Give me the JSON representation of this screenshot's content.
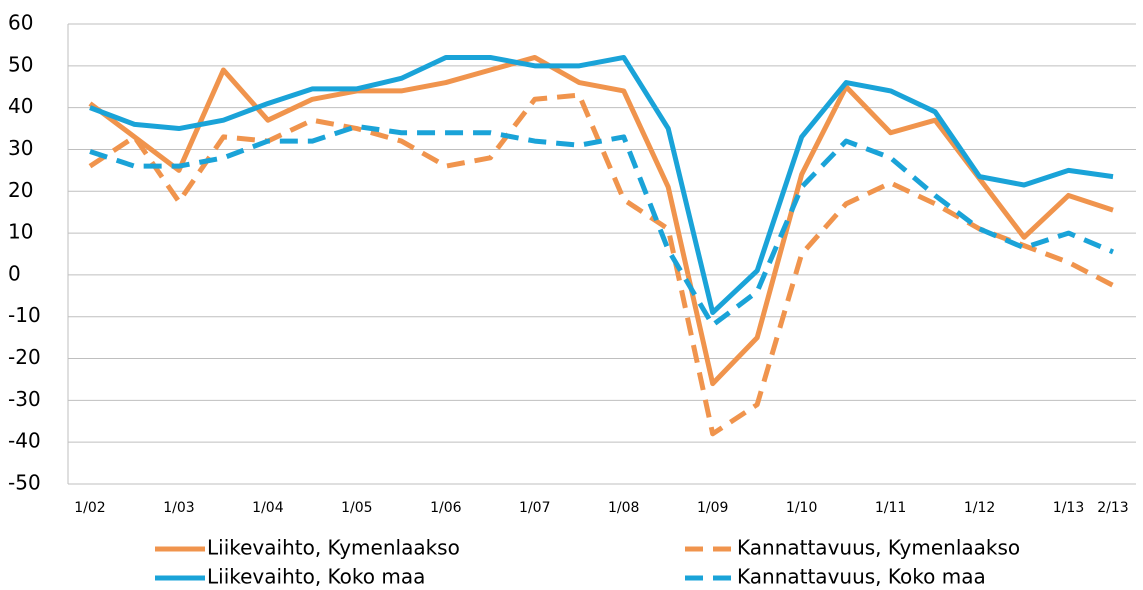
{
  "chart_data": {
    "type": "line",
    "categories": [
      "1/02",
      null,
      "1/03",
      null,
      "1/04",
      null,
      "1/05",
      null,
      "1/06",
      null,
      "1/07",
      null,
      "1/08",
      null,
      "1/09",
      null,
      "1/10",
      null,
      "1/11",
      null,
      "1/12",
      null,
      "1/13",
      "2/13"
    ],
    "series": [
      {
        "name": "Liikevaihto, Kymenlaakso",
        "color": "#f0944d",
        "dashed": false,
        "values": [
          41,
          33,
          25,
          49,
          37,
          42,
          44,
          44,
          46,
          49,
          52,
          46,
          44,
          21,
          -26,
          -15,
          24,
          45,
          34,
          37,
          23,
          9,
          19,
          15.5
        ]
      },
      {
        "name": "Kannattavuus, Kymenlaakso",
        "color": "#f0944d",
        "dashed": true,
        "values": [
          26,
          33,
          17.5,
          33,
          32,
          37,
          35,
          32,
          26,
          28,
          42,
          43,
          18,
          11,
          -38,
          -31,
          5,
          17,
          22,
          17,
          11,
          7,
          3,
          -2.5
        ]
      },
      {
        "name": "Liikevaihto, Koko maa",
        "color": "#1aa3d8",
        "dashed": false,
        "values": [
          40,
          36,
          35,
          37,
          41,
          44.5,
          44.5,
          47,
          52,
          52,
          50,
          50,
          52,
          35,
          -9,
          1,
          33,
          46,
          44,
          39,
          23.5,
          21.5,
          25,
          23.5
        ]
      },
      {
        "name": "Kannattavuus, Koko maa",
        "color": "#1aa3d8",
        "dashed": true,
        "values": [
          29.5,
          26,
          26,
          28,
          32,
          32,
          35.5,
          34,
          34,
          34,
          32,
          31,
          33,
          6,
          -12,
          -4,
          21,
          32,
          28,
          19,
          11,
          6.5,
          10,
          5.5
        ]
      }
    ],
    "ylim": [
      -50,
      60
    ],
    "yticks": [
      -50,
      -40,
      -30,
      -20,
      -10,
      0,
      10,
      20,
      30,
      40,
      50,
      60
    ],
    "grid": true
  }
}
